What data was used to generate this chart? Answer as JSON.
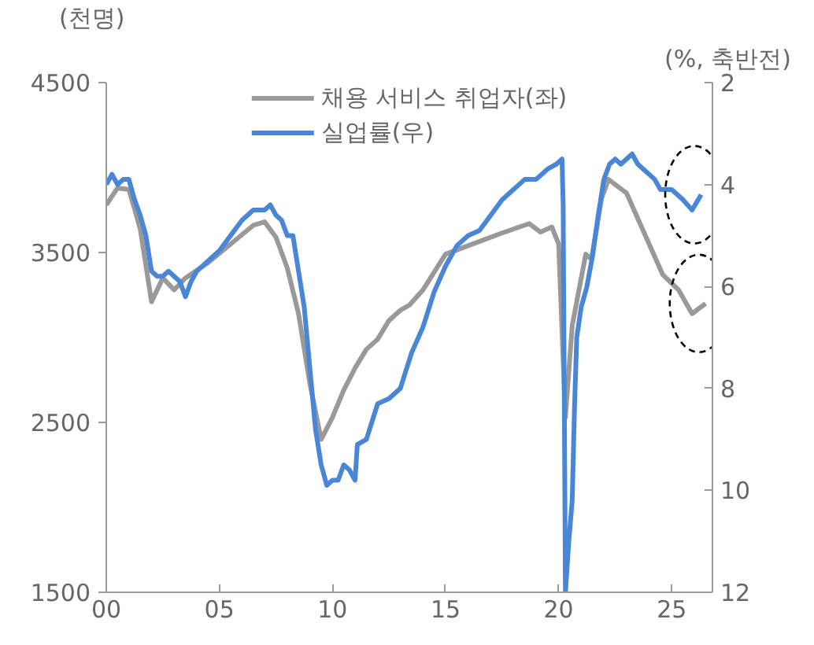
{
  "chart_data": {
    "type": "line",
    "ylabel": "(천명)",
    "y2label": "(%, 축반전)",
    "xlim": [
      2000,
      2026.8
    ],
    "xticks": [
      {
        "value": 2000,
        "label": "00"
      },
      {
        "value": 2005,
        "label": "05"
      },
      {
        "value": 2010,
        "label": "10"
      },
      {
        "value": 2015,
        "label": "15"
      },
      {
        "value": 2020,
        "label": "20"
      },
      {
        "value": 2025,
        "label": "25"
      }
    ],
    "ylim": [
      1500,
      4500
    ],
    "yticks": [
      1500,
      2500,
      3500,
      4500
    ],
    "y2lim": [
      12,
      2
    ],
    "y2ticks": [
      2,
      4,
      6,
      8,
      10,
      12
    ],
    "grid": false,
    "legend": "top",
    "marker": "none",
    "line_style": "solid",
    "series": [
      {
        "name": "채용 서비스 취업자(좌)",
        "color": "#999999",
        "x": [
          2000.0,
          2000.5,
          2001.0,
          2001.5,
          2002.0,
          2002.5,
          2003.0,
          2003.5,
          2004.5,
          2005.5,
          2006.5,
          2007.0,
          2007.5,
          2008.0,
          2008.5,
          2009.0,
          2009.5,
          2010.0,
          2010.5,
          2011.0,
          2011.5,
          2012.0,
          2012.5,
          2013.0,
          2013.4,
          2014.0,
          2015.0,
          2016.0,
          2017.4,
          2018.7,
          2019.2,
          2019.7,
          2020.0,
          2020.3,
          2020.6,
          2021.2,
          2021.45,
          2021.9,
          2022.2,
          2023.0,
          2023.7,
          2024.6,
          2025.3,
          2025.9,
          2026.5
        ],
        "values": [
          3780,
          3880,
          3870,
          3640,
          3210,
          3350,
          3280,
          3350,
          3440,
          3550,
          3660,
          3680,
          3590,
          3410,
          3140,
          2730,
          2400,
          2530,
          2690,
          2820,
          2930,
          2990,
          3100,
          3160,
          3190,
          3280,
          3490,
          3540,
          3610,
          3670,
          3620,
          3650,
          3550,
          2530,
          3070,
          3490,
          3460,
          3820,
          3930,
          3850,
          3640,
          3370,
          3280,
          3140,
          3200
        ]
      },
      {
        "name": "실업률(우)",
        "color": "#4a86d6",
        "axis": "y2",
        "x": [
          2000.0,
          2000.25,
          2000.5,
          2000.75,
          2001.0,
          2001.25,
          2001.5,
          2001.75,
          2002.0,
          2002.25,
          2002.5,
          2002.75,
          2003.0,
          2003.25,
          2003.5,
          2003.75,
          2004.0,
          2004.5,
          2005.0,
          2005.5,
          2006.0,
          2006.5,
          2007.0,
          2007.25,
          2007.5,
          2007.75,
          2008.0,
          2008.25,
          2008.5,
          2008.75,
          2009.0,
          2009.25,
          2009.5,
          2009.75,
          2010.0,
          2010.25,
          2010.5,
          2010.75,
          2011.0,
          2011.1,
          2011.5,
          2012.0,
          2012.5,
          2013.0,
          2013.5,
          2014.0,
          2014.5,
          2015.0,
          2015.5,
          2016.0,
          2016.5,
          2017.0,
          2017.5,
          2018.0,
          2018.5,
          2019.0,
          2019.5,
          2019.9,
          2020.15,
          2020.2,
          2020.3,
          2020.45,
          2020.6,
          2020.7,
          2020.8,
          2021.0,
          2021.25,
          2021.5,
          2021.75,
          2022.0,
          2022.25,
          2022.5,
          2022.75,
          2023.0,
          2023.25,
          2023.5,
          2023.75,
          2024.0,
          2024.25,
          2024.5,
          2024.75,
          2025.0,
          2025.25,
          2025.5,
          2025.9,
          2026.3
        ],
        "values": [
          4.0,
          3.8,
          4.0,
          3.9,
          3.9,
          4.3,
          4.6,
          5.0,
          5.7,
          5.8,
          5.8,
          5.7,
          5.8,
          5.9,
          6.2,
          5.9,
          5.7,
          5.5,
          5.3,
          5.0,
          4.7,
          4.5,
          4.5,
          4.4,
          4.6,
          4.7,
          5.0,
          5.0,
          5.7,
          6.4,
          7.6,
          8.8,
          9.5,
          9.9,
          9.8,
          9.8,
          9.5,
          9.6,
          9.8,
          9.1,
          9.0,
          8.3,
          8.2,
          8.0,
          7.3,
          6.8,
          6.1,
          5.6,
          5.2,
          5.0,
          4.9,
          4.6,
          4.3,
          4.1,
          3.9,
          3.9,
          3.7,
          3.6,
          3.5,
          4.4,
          12,
          11.0,
          10.2,
          8.4,
          7.0,
          6.4,
          6.0,
          5.4,
          4.6,
          3.9,
          3.6,
          3.5,
          3.6,
          3.5,
          3.4,
          3.6,
          3.7,
          3.8,
          3.9,
          4.1,
          4.1,
          4.1,
          4.2,
          4.3,
          4.5,
          4.2
        ]
      }
    ]
  }
}
